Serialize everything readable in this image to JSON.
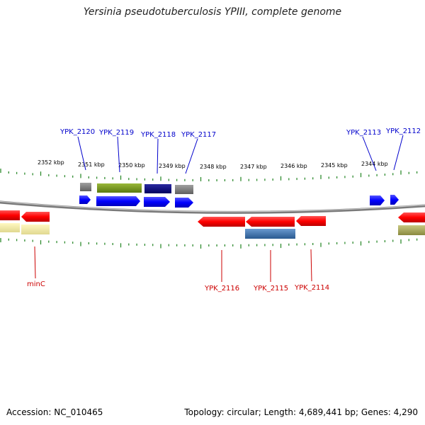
{
  "title": "Yersinia pseudotuberculosis YPIII, complete genome",
  "footer": {
    "accession": "Accession: NC_010465",
    "stats": "Topology: circular; Length: 4,689,441 bp; Genes: 4,290"
  },
  "scale_labels": [
    "2352 kbp",
    "2351 kbp",
    "2350 kbp",
    "2349 kbp",
    "2348 kbp",
    "2347 kbp",
    "2346 kbp",
    "2345 kbp",
    "2344 kbp"
  ],
  "gene_labels_top": [
    "YPK_2120",
    "YPK_2119",
    "YPK_2118",
    "YPK_2117",
    "YPK_2113",
    "YPK_2112"
  ],
  "gene_labels_bottom": [
    "minC",
    "YPK_2116",
    "YPK_2115",
    "YPK_2114"
  ],
  "colors": {
    "tick": "#2e8b2e",
    "forward_gene": "#0000ff",
    "reverse_gene": "#ff0000",
    "forward_label": "#0000cc",
    "reverse_label": "#cc0000",
    "backbone": "#888888",
    "gray_feature": "#7a7a7a",
    "olive_feature": "#7a9a1a",
    "navy_feature": "#0a0a80",
    "steel_feature": "#4a7ab0",
    "khaki_feature": "#a8a860",
    "pale_feature": "#f0e8a0"
  }
}
